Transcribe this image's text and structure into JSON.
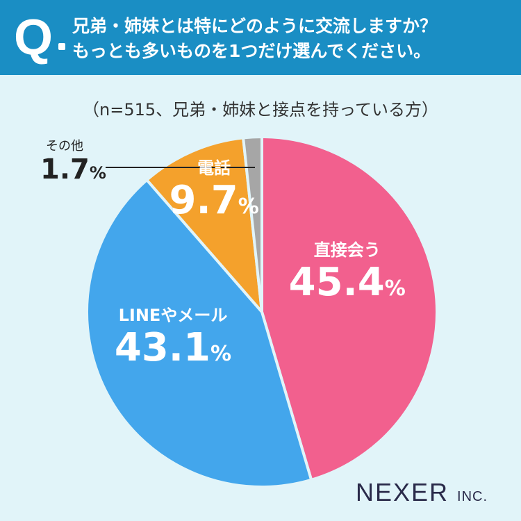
{
  "header": {
    "mark": "Q",
    "line1": "兄弟・姉妹とは特にどのように交流しますか？",
    "line2": "もっとも多いものを1つだけ選んでください。"
  },
  "note": "（n=515、兄弟・姉妹と接点を持っている方）",
  "logo": {
    "name": "NEXER",
    "suffix": "INC."
  },
  "chart_data": {
    "type": "pie",
    "title": "兄弟・姉妹とは特にどのように交流しますか？もっとも多いものを1つだけ選んでください。",
    "unit": "%",
    "slices": [
      {
        "label": "直接会う",
        "value": 45.4,
        "color": "#f2608e"
      },
      {
        "label": "LINEやメール",
        "value": 43.1,
        "color": "#43a6ec"
      },
      {
        "label": "電話",
        "value": 9.7,
        "color": "#f4a12c"
      },
      {
        "label": "その他",
        "value": 1.7,
        "color": "#a6a6a6"
      }
    ]
  }
}
